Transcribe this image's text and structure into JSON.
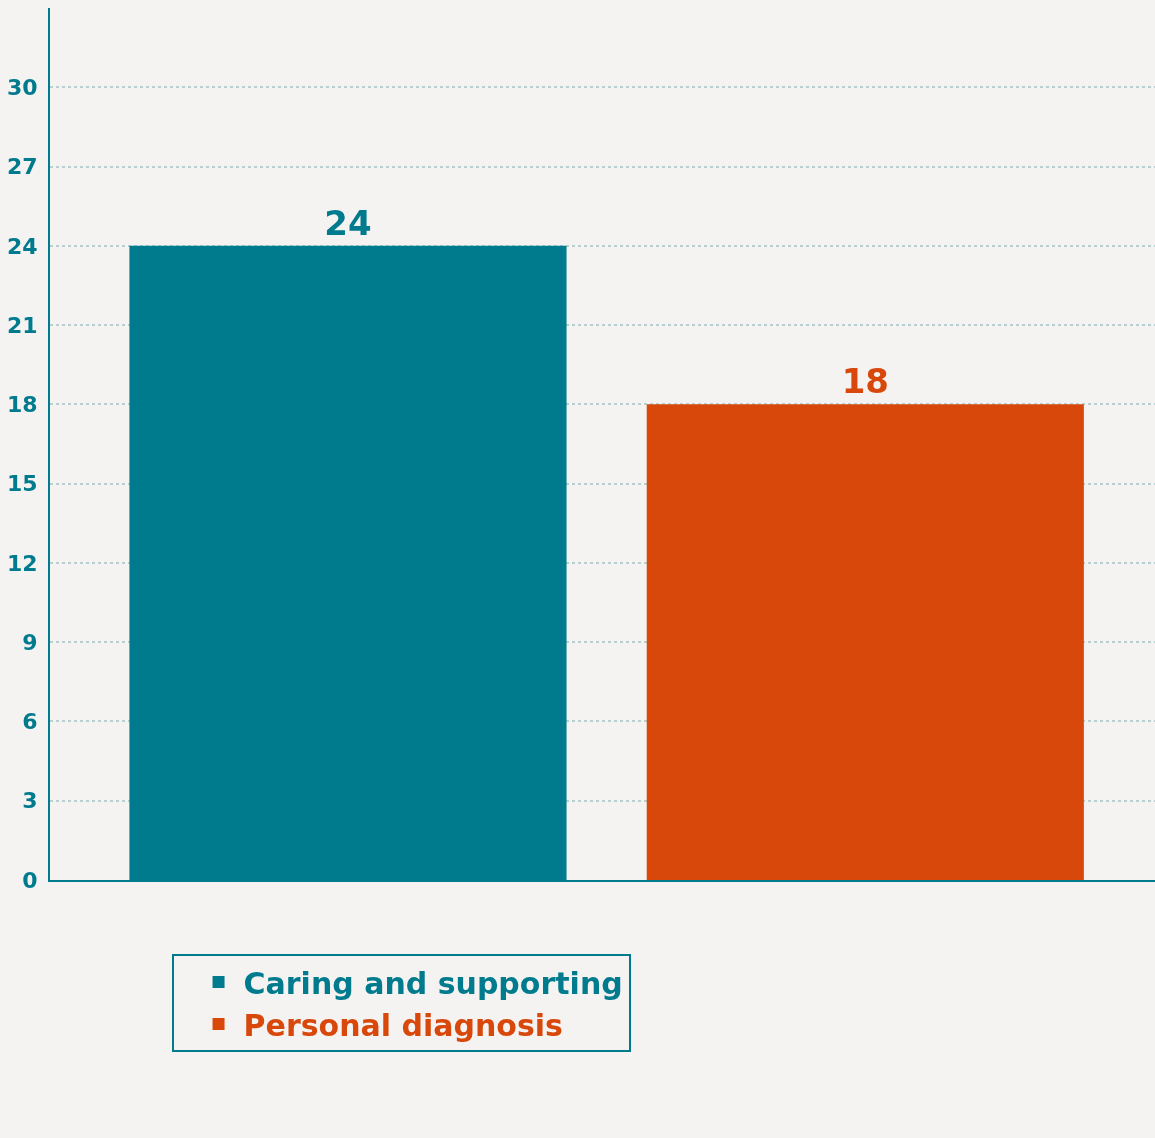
{
  "chart_data": {
    "type": "bar",
    "categories": [
      null,
      null
    ],
    "series": [
      {
        "name": "Caring and supporting",
        "color": "#007b8e",
        "values": [
          24,
          null
        ]
      },
      {
        "name": "Personal diagnosis",
        "color": "#d9480b",
        "values": [
          null,
          18
        ]
      }
    ],
    "ylim": [
      0,
      33
    ],
    "yticks": [
      0,
      3,
      6,
      9,
      12,
      15,
      18,
      21,
      24,
      27,
      30
    ],
    "grid": "y",
    "legend": "bottom",
    "data_labels": true,
    "tick_labels": "y"
  }
}
